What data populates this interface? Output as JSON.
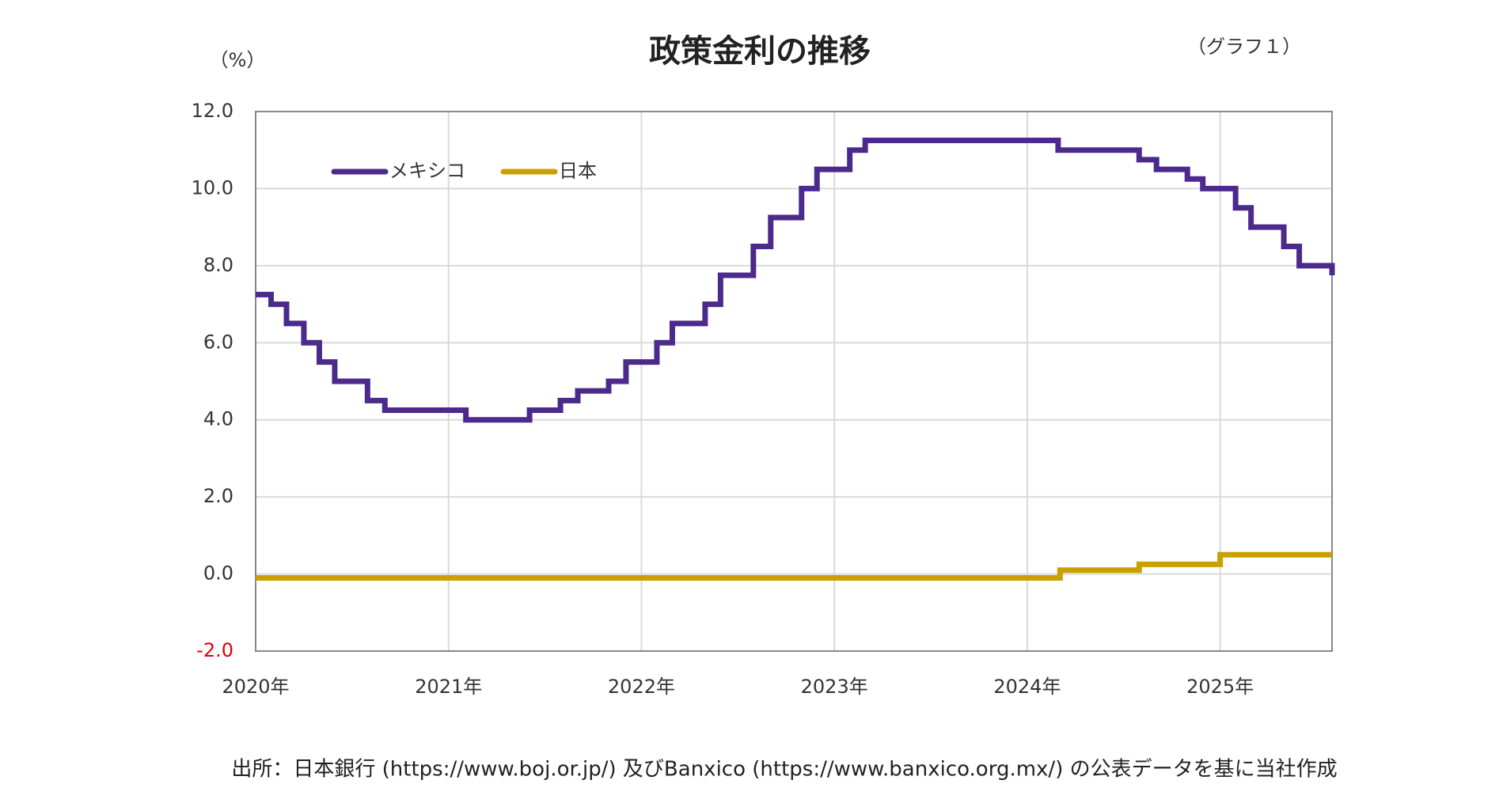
{
  "chart_data": {
    "type": "step",
    "title": "政策金利の推移",
    "graph_label": "（グラフ１）",
    "y_unit": "（%）",
    "source": "出所：日本銀行 (https://www.boj.or.jp/) 及びBanxico (https://www.banxico.org.mx/) の公表データを基に当社作成",
    "xlim": [
      2020,
      2025.58
    ],
    "xticks": [
      {
        "value": 2020,
        "label": "2020年"
      },
      {
        "value": 2021,
        "label": "2021年"
      },
      {
        "value": 2022,
        "label": "2022年"
      },
      {
        "value": 2023,
        "label": "2023年"
      },
      {
        "value": 2024,
        "label": "2024年"
      },
      {
        "value": 2025,
        "label": "2025年"
      }
    ],
    "ylim": [
      -2,
      12
    ],
    "yticks": [
      {
        "value": -2,
        "label": "-2.0"
      },
      {
        "value": 0,
        "label": "0.0"
      },
      {
        "value": 2,
        "label": "2.0"
      },
      {
        "value": 4,
        "label": "4.0"
      },
      {
        "value": 6,
        "label": "6.0"
      },
      {
        "value": 8,
        "label": "8.0"
      },
      {
        "value": 10,
        "label": "10.0"
      },
      {
        "value": 12,
        "label": "12.0"
      }
    ],
    "negative_tick_color": "#e00000",
    "grid": true,
    "legend": "upper left",
    "series": [
      {
        "name": "メキシコ",
        "color": "#4b2a8c",
        "x": [
          2020,
          2020.08,
          2020.16,
          2020.25,
          2020.33,
          2020.41,
          2020.58,
          2020.67,
          2021.09,
          2021.42,
          2021.58,
          2021.67,
          2021.83,
          2021.92,
          2022.08,
          2022.16,
          2022.33,
          2022.41,
          2022.58,
          2022.67,
          2022.83,
          2022.91,
          2023.08,
          2023.16,
          2024.16,
          2024.58,
          2024.67,
          2024.83,
          2024.91,
          2025.08,
          2025.16,
          2025.33,
          2025.41,
          2025.58
        ],
        "values": [
          7.25,
          7.0,
          6.5,
          6.0,
          5.5,
          5.0,
          4.5,
          4.25,
          4.0,
          4.25,
          4.5,
          4.75,
          5.0,
          5.5,
          6.0,
          6.5,
          7.0,
          7.75,
          8.5,
          9.25,
          10.0,
          10.5,
          11.0,
          11.25,
          11.0,
          10.75,
          10.5,
          10.25,
          10.0,
          9.5,
          9.0,
          8.5,
          8.0,
          7.75
        ]
      },
      {
        "name": "日本",
        "color": "#c9a000",
        "x": [
          2020,
          2024.17,
          2024.58,
          2025.0,
          2025.58
        ],
        "values": [
          -0.1,
          0.1,
          0.25,
          0.5,
          0.5
        ]
      }
    ]
  }
}
